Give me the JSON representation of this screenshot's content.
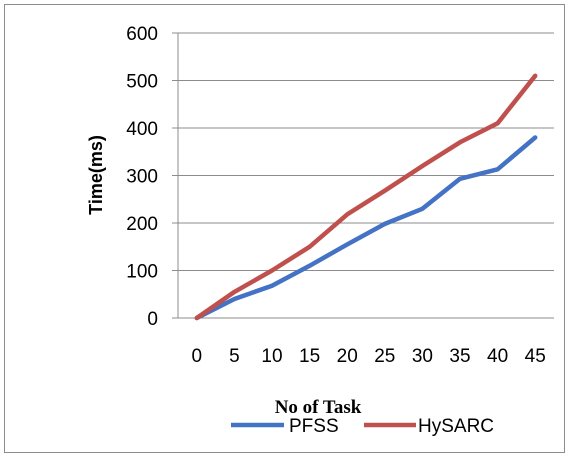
{
  "chart_data": {
    "type": "line",
    "x": [
      0,
      5,
      10,
      15,
      20,
      25,
      30,
      35,
      40,
      45
    ],
    "xlabel": "No of Task",
    "ylabel": "Time(ms)",
    "ylim": [
      0,
      600
    ],
    "yticks": [
      0,
      100,
      200,
      300,
      400,
      500,
      600
    ],
    "grid": true,
    "legend_position": "bottom",
    "series": [
      {
        "name": "PFSS",
        "color": "#4472C4",
        "values": [
          0,
          40,
          68,
          110,
          155,
          198,
          230,
          293,
          313,
          380
        ]
      },
      {
        "name": "HySARC",
        "color": "#C0504D",
        "values": [
          0,
          55,
          100,
          150,
          218,
          268,
          320,
          370,
          410,
          510
        ]
      }
    ]
  }
}
